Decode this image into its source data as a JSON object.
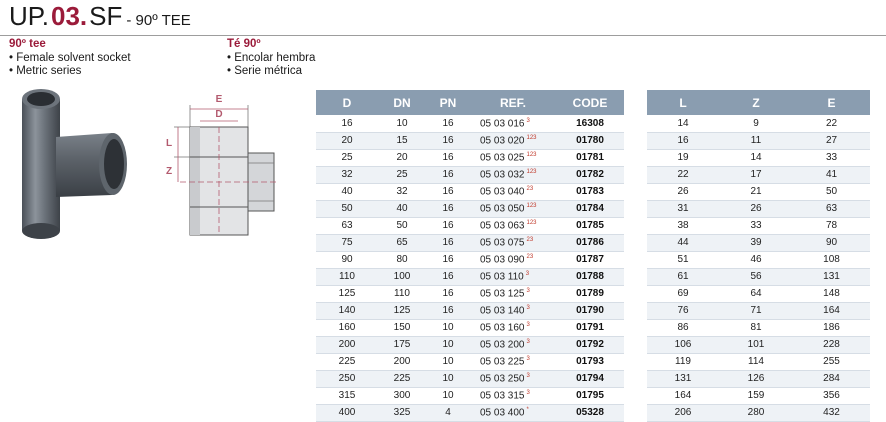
{
  "header": {
    "prefix": "UP.",
    "number": "03.",
    "family": "SF",
    "subtitle": "- 90º TEE"
  },
  "description_en": {
    "title": "90º tee",
    "lines": [
      "• Female solvent socket",
      "• Metric series"
    ]
  },
  "description_es": {
    "title": "Té 90º",
    "lines": [
      "• Encolar hembra",
      "• Serie métrica"
    ]
  },
  "drawing_labels": {
    "e": "E",
    "d": "D",
    "l": "L",
    "z": "Z"
  },
  "table": {
    "headers": [
      "D",
      "DN",
      "PN",
      "REF.",
      "CODE"
    ],
    "rows": [
      {
        "d": "16",
        "dn": "10",
        "pn": "16",
        "ref": "05 03 016",
        "sup": "3",
        "code": "16308"
      },
      {
        "d": "20",
        "dn": "15",
        "pn": "16",
        "ref": "05 03 020",
        "sup": "123",
        "code": "01780"
      },
      {
        "d": "25",
        "dn": "20",
        "pn": "16",
        "ref": "05 03 025",
        "sup": "123",
        "code": "01781"
      },
      {
        "d": "32",
        "dn": "25",
        "pn": "16",
        "ref": "05 03 032",
        "sup": "123",
        "code": "01782"
      },
      {
        "d": "40",
        "dn": "32",
        "pn": "16",
        "ref": "05 03 040",
        "sup": "23",
        "code": "01783"
      },
      {
        "d": "50",
        "dn": "40",
        "pn": "16",
        "ref": "05 03 050",
        "sup": "123",
        "code": "01784"
      },
      {
        "d": "63",
        "dn": "50",
        "pn": "16",
        "ref": "05 03 063",
        "sup": "123",
        "code": "01785"
      },
      {
        "d": "75",
        "dn": "65",
        "pn": "16",
        "ref": "05 03 075",
        "sup": "23",
        "code": "01786"
      },
      {
        "d": "90",
        "dn": "80",
        "pn": "16",
        "ref": "05 03 090",
        "sup": "23",
        "code": "01787"
      },
      {
        "d": "110",
        "dn": "100",
        "pn": "16",
        "ref": "05 03 110",
        "sup": "3",
        "code": "01788"
      },
      {
        "d": "125",
        "dn": "110",
        "pn": "16",
        "ref": "05 03 125",
        "sup": "3",
        "code": "01789"
      },
      {
        "d": "140",
        "dn": "125",
        "pn": "16",
        "ref": "05 03 140",
        "sup": "3",
        "code": "01790"
      },
      {
        "d": "160",
        "dn": "150",
        "pn": "10",
        "ref": "05 03 160",
        "sup": "3",
        "code": "01791"
      },
      {
        "d": "200",
        "dn": "175",
        "pn": "10",
        "ref": "05 03 200",
        "sup": "3",
        "code": "01792"
      },
      {
        "d": "225",
        "dn": "200",
        "pn": "10",
        "ref": "05 03 225",
        "sup": "3",
        "code": "01793"
      },
      {
        "d": "250",
        "dn": "225",
        "pn": "10",
        "ref": "05 03 250",
        "sup": "3",
        "code": "01794"
      },
      {
        "d": "315",
        "dn": "300",
        "pn": "10",
        "ref": "05 03 315",
        "sup": "3",
        "code": "01795"
      },
      {
        "d": "400",
        "dn": "325",
        "pn": "4",
        "ref": "05 03 400",
        "sup": "*",
        "code": "05328"
      }
    ]
  },
  "dims": {
    "headers": [
      "L",
      "Z",
      "E"
    ],
    "rows": [
      [
        "14",
        "9",
        "22"
      ],
      [
        "16",
        "11",
        "27"
      ],
      [
        "19",
        "14",
        "33"
      ],
      [
        "22",
        "17",
        "41"
      ],
      [
        "26",
        "21",
        "50"
      ],
      [
        "31",
        "26",
        "63"
      ],
      [
        "38",
        "33",
        "78"
      ],
      [
        "44",
        "39",
        "90"
      ],
      [
        "51",
        "46",
        "108"
      ],
      [
        "61",
        "56",
        "131"
      ],
      [
        "69",
        "64",
        "148"
      ],
      [
        "76",
        "71",
        "164"
      ],
      [
        "86",
        "81",
        "186"
      ],
      [
        "106",
        "101",
        "228"
      ],
      [
        "119",
        "114",
        "255"
      ],
      [
        "131",
        "126",
        "284"
      ],
      [
        "164",
        "159",
        "356"
      ],
      [
        "206",
        "280",
        "432"
      ]
    ]
  }
}
